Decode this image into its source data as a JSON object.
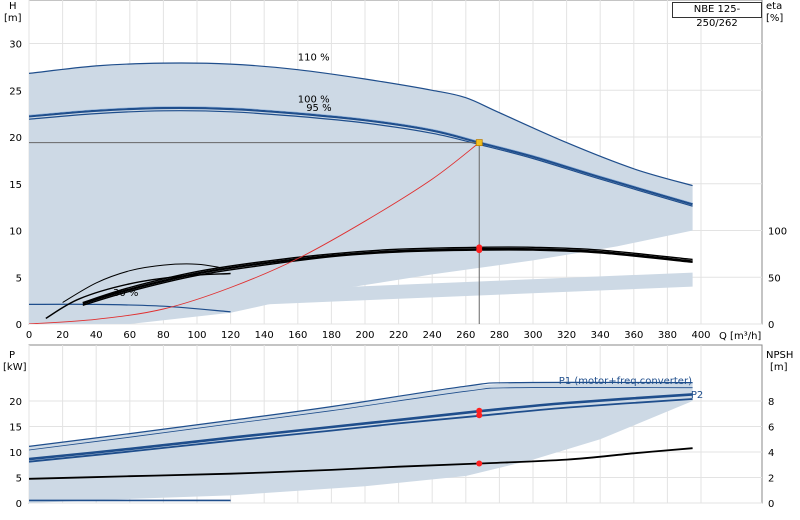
{
  "model": "NBE 125-250/262",
  "chart_data": [
    {
      "id": "top",
      "type": "line",
      "xlabel": "Q [m³/h]",
      "ylabel_unit": "[m]",
      "ylabel": "H",
      "y2label": "eta",
      "y2label_unit": "[%]",
      "xlim": [
        0,
        400
      ],
      "ylim": [
        0,
        33
      ],
      "y2lim": [
        0,
        165
      ],
      "xticks": [
        "0",
        "20",
        "40",
        "60",
        "80",
        "100",
        "120",
        "140",
        "160",
        "180",
        "200",
        "220",
        "240",
        "260",
        "280",
        "300",
        "320",
        "340",
        "360",
        "380",
        "400"
      ],
      "yticks": [
        "0",
        "5",
        "10",
        "15",
        "20",
        "25",
        "30"
      ],
      "y2ticks": [
        "0",
        "50",
        "100"
      ],
      "curve_labels": [
        {
          "text": "110 %",
          "x": 160,
          "y": 28.2
        },
        {
          "text": "100 %",
          "x": 160,
          "y": 23.7
        },
        {
          "text": "95 %",
          "x": 165,
          "y": 22.8
        },
        {
          "text": "30 %",
          "x": 50,
          "y": 3
        }
      ],
      "series": [
        {
          "role": "H 110%",
          "points": [
            [
              0,
              26.8
            ],
            [
              40,
              27.6
            ],
            [
              80,
              27.9
            ],
            [
              120,
              27.8
            ],
            [
              160,
              27.2
            ],
            [
              200,
              26.2
            ],
            [
              240,
              25
            ],
            [
              260,
              24.2
            ],
            [
              280,
              22.6
            ],
            [
              320,
              19.4
            ],
            [
              360,
              16.6
            ],
            [
              395,
              14.8
            ]
          ]
        },
        {
          "role": "H 100%",
          "points": [
            [
              0,
              22.2
            ],
            [
              40,
              22.8
            ],
            [
              80,
              23.1
            ],
            [
              120,
              23
            ],
            [
              160,
              22.5
            ],
            [
              200,
              21.8
            ],
            [
              240,
              20.7
            ],
            [
              268,
              19.4
            ],
            [
              300,
              17.9
            ],
            [
              340,
              15.7
            ],
            [
              395,
              12.8
            ]
          ]
        },
        {
          "role": "H 95%",
          "points": [
            [
              0,
              21.9
            ],
            [
              40,
              22.5
            ],
            [
              80,
              22.8
            ],
            [
              120,
              22.7
            ],
            [
              160,
              22.2
            ],
            [
              200,
              21.5
            ],
            [
              240,
              20.4
            ],
            [
              268,
              19.2
            ],
            [
              300,
              17.7
            ],
            [
              340,
              15.5
            ],
            [
              395,
              12.6
            ]
          ]
        },
        {
          "role": "H 30%",
          "points": [
            [
              0,
              2.1
            ],
            [
              40,
              2.1
            ],
            [
              80,
              1.9
            ],
            [
              120,
              1.3
            ]
          ]
        },
        {
          "role": "eta 100%",
          "points": [
            [
              32,
              22
            ],
            [
              60,
              37
            ],
            [
              100,
              54
            ],
            [
              140,
              65
            ],
            [
              180,
              73
            ],
            [
              220,
              78
            ],
            [
              268,
              80
            ],
            [
              300,
              80
            ],
            [
              340,
              77
            ],
            [
              395,
              67
            ]
          ]
        },
        {
          "role": "eta 95%",
          "points": [
            [
              32,
              20
            ],
            [
              60,
              35
            ],
            [
              100,
              52
            ],
            [
              140,
              63
            ],
            [
              180,
              72
            ],
            [
              220,
              77
            ],
            [
              268,
              79
            ],
            [
              300,
              79
            ],
            [
              340,
              76
            ],
            [
              395,
              66
            ]
          ]
        },
        {
          "role": "eta 110%",
          "points": [
            [
              32,
              23
            ],
            [
              60,
              39
            ],
            [
              100,
              56
            ],
            [
              140,
              67
            ],
            [
              180,
              75
            ],
            [
              220,
              80
            ],
            [
              268,
              82
            ],
            [
              300,
              82
            ],
            [
              340,
              79
            ],
            [
              395,
              69
            ]
          ]
        },
        {
          "role": "eta 80%",
          "points": [
            [
              20,
              23
            ],
            [
              40,
              44
            ],
            [
              60,
              57
            ],
            [
              80,
              63
            ],
            [
              100,
              64
            ],
            [
              115,
              60
            ]
          ]
        },
        {
          "role": "eta 60%",
          "points": [
            [
              10,
              6
            ],
            [
              30,
              27
            ],
            [
              60,
              43
            ],
            [
              90,
              51
            ],
            [
              120,
              54
            ]
          ]
        },
        {
          "role": "system curve",
          "points": [
            [
              0,
              0
            ],
            [
              40,
              0.5
            ],
            [
              80,
              1.6
            ],
            [
              120,
              3.9
            ],
            [
              160,
              7
            ],
            [
              200,
              11
            ],
            [
              240,
              15.5
            ],
            [
              268,
              19.4
            ]
          ]
        }
      ],
      "duty_point": {
        "q": 268,
        "h": 19.4
      },
      "eta_points": [
        82,
        79
      ]
    },
    {
      "id": "bottom",
      "type": "line",
      "ylabel": "P",
      "ylabel_unit": "[kW]",
      "y2label": "NPSH",
      "y2label_unit": "[m]",
      "xlim": [
        0,
        400
      ],
      "ylim": [
        0,
        27
      ],
      "y2lim": [
        0,
        10.8
      ],
      "yticks": [
        "0",
        "5",
        "10",
        "15",
        "20"
      ],
      "y2ticks": [
        "0",
        "2",
        "4",
        "6",
        "8"
      ],
      "curve_labels": [
        {
          "text": "P1 (motor+freq.converter)",
          "x": 355,
          "y": 23.3
        },
        {
          "text": "P2",
          "x": 394,
          "y": 20.6
        }
      ],
      "series": [
        {
          "role": "P1 110%",
          "points": [
            [
              0,
              11.1
            ],
            [
              60,
              13.6
            ],
            [
              120,
              16.2
            ],
            [
              180,
              18.9
            ],
            [
              260,
              22.9
            ],
            [
              290,
              23.6
            ],
            [
              395,
              23.6
            ]
          ]
        },
        {
          "role": "P1 upper",
          "points": [
            [
              0,
              10.4
            ],
            [
              60,
              12.9
            ],
            [
              120,
              15.5
            ],
            [
              180,
              18.1
            ],
            [
              260,
              21.9
            ],
            [
              290,
              22.6
            ],
            [
              395,
              22.6
            ]
          ]
        },
        {
          "role": "P1 100%",
          "points": [
            [
              0,
              8.6
            ],
            [
              60,
              10.6
            ],
            [
              120,
              12.8
            ],
            [
              180,
              14.9
            ],
            [
              220,
              16.3
            ],
            [
              268,
              18
            ],
            [
              320,
              19.6
            ],
            [
              395,
              21.3
            ]
          ]
        },
        {
          "role": "P2 100%",
          "points": [
            [
              0,
              8.1
            ],
            [
              60,
              10.1
            ],
            [
              120,
              12.2
            ],
            [
              180,
              14.2
            ],
            [
              220,
              15.6
            ],
            [
              268,
              17.1
            ],
            [
              320,
              18.7
            ],
            [
              395,
              20.4
            ]
          ]
        },
        {
          "role": "P 30%",
          "points": [
            [
              0,
              0.5
            ],
            [
              120,
              0.5
            ]
          ]
        },
        {
          "role": "NPSH",
          "points": [
            [
              0,
              1.9
            ],
            [
              60,
              2.1
            ],
            [
              120,
              2.3
            ],
            [
              180,
              2.6
            ],
            [
              220,
              2.85
            ],
            [
              268,
              3.1
            ],
            [
              320,
              3.4
            ],
            [
              360,
              3.9
            ],
            [
              395,
              4.3
            ]
          ]
        }
      ],
      "duty_point": {
        "q": 268,
        "p1": 18.1,
        "p2": 17.2,
        "npsh": 3.1
      }
    }
  ]
}
